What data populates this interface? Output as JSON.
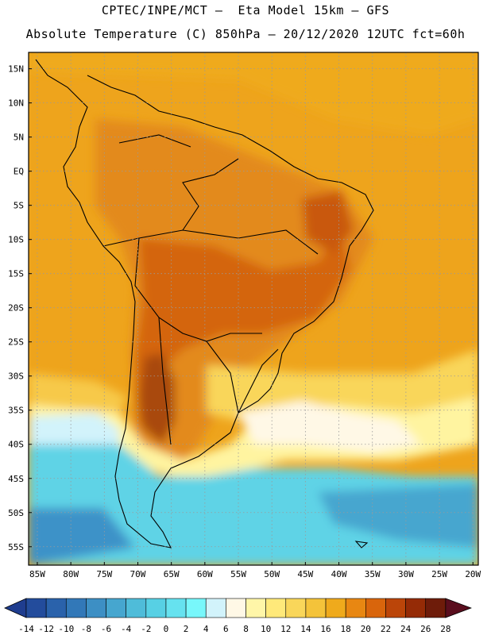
{
  "header": {
    "line1": "CPTEC/INPE/MCT –  Eta Model 15km – GFS",
    "line2": "Absolute Temperature (C) 850hPa – 20/12/2020 12UTC fct=60h"
  },
  "axes": {
    "lat_labels": [
      "15N",
      "10N",
      "5N",
      "EQ",
      "5S",
      "10S",
      "15S",
      "20S",
      "25S",
      "30S",
      "35S",
      "40S",
      "45S",
      "50S",
      "55S"
    ],
    "lat_values": [
      15,
      10,
      5,
      0,
      -5,
      -10,
      -15,
      -20,
      -25,
      -30,
      -35,
      -40,
      -45,
      -50,
      -55
    ],
    "lon_labels": [
      "85W",
      "80W",
      "75W",
      "70W",
      "65W",
      "60W",
      "55W",
      "50W",
      "45W",
      "40W",
      "35W",
      "30W",
      "25W",
      "20W"
    ],
    "lon_values": [
      -85,
      -80,
      -75,
      -70,
      -65,
      -60,
      -55,
      -50,
      -45,
      -40,
      -35,
      -30,
      -25,
      -20
    ]
  },
  "colorbar": {
    "labels": [
      "-14",
      "-12",
      "-10",
      "-8",
      "-6",
      "-4",
      "-2",
      "0",
      "2",
      "4",
      "6",
      "8",
      "10",
      "12",
      "14",
      "16",
      "18",
      "20",
      "22",
      "24",
      "26",
      "28"
    ],
    "colors": [
      "#1f3d8f",
      "#234c9c",
      "#2a62ab",
      "#3278b8",
      "#3d8fc4",
      "#46a6cf",
      "#4fbcd9",
      "#57d0e4",
      "#66e2ef",
      "#78f7fb",
      "#d2f3fb",
      "#fff8e6",
      "#fff6a8",
      "#ffe97a",
      "#f9d65a",
      "#f4c33a",
      "#efaa1c",
      "#e88712",
      "#d9650c",
      "#bb4509",
      "#952b06",
      "#6e1c0a",
      "#5a0e1e"
    ]
  },
  "map": {
    "name": "South America 850hPa temperature",
    "colors": {
      "tropic": "#eea41c",
      "warm": "#e38a1a",
      "hot": "#d4650f",
      "hottest": "#a94a0c",
      "warm_yellow": "#f7c94a",
      "yellow": "#fff4a0",
      "cream": "#fff8e6",
      "pale_cyan": "#d2f3fb",
      "cyan": "#5fd3e6",
      "blue": "#3d92c8"
    }
  }
}
